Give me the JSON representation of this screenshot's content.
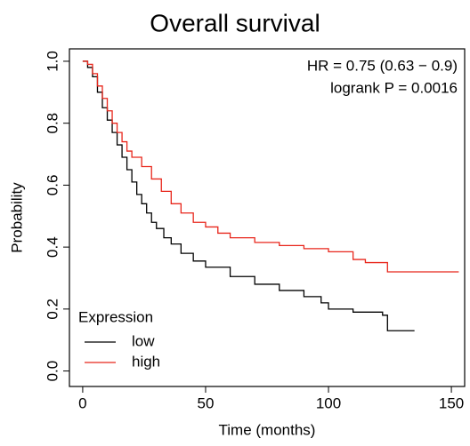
{
  "chart_data": {
    "type": "step",
    "title": "Overall survival",
    "x_label": "Time (months)",
    "y_label": "Probability",
    "annotations": [
      "HR = 0.75 (0.63 − 0.9)",
      "logrank P = 0.0016"
    ],
    "legend_title": "Expression",
    "legend": "bottom-left",
    "xlim": [
      -5.4,
      155.4
    ],
    "ylim": [
      -0.05,
      1.04
    ],
    "xticks": [
      0,
      50,
      100,
      150
    ],
    "yticks": [
      {
        "value": 0,
        "label": "0.0"
      },
      0.2,
      0.4,
      0.6,
      0.8,
      {
        "value": 1,
        "label": "1.0"
      }
    ],
    "series": [
      {
        "name": "low",
        "color": "#000000",
        "x": [
          0,
          2,
          4,
          6,
          8,
          10,
          12,
          14,
          16,
          18,
          20,
          22,
          24,
          26,
          28,
          30,
          33,
          36,
          40,
          45,
          50,
          60,
          70,
          80,
          90,
          97,
          100,
          110,
          122,
          124,
          135
        ],
        "values": [
          1.0,
          0.98,
          0.95,
          0.9,
          0.85,
          0.81,
          0.77,
          0.73,
          0.69,
          0.65,
          0.61,
          0.57,
          0.54,
          0.51,
          0.48,
          0.46,
          0.43,
          0.41,
          0.38,
          0.355,
          0.335,
          0.305,
          0.28,
          0.26,
          0.24,
          0.22,
          0.2,
          0.19,
          0.18,
          0.13,
          0.13
        ]
      },
      {
        "name": "high",
        "color": "#e8261b",
        "x": [
          0,
          2,
          4,
          6,
          8,
          10,
          12,
          14,
          16,
          18,
          20,
          24,
          28,
          32,
          36,
          40,
          45,
          50,
          55,
          60,
          70,
          80,
          90,
          100,
          110,
          115,
          124,
          153
        ],
        "values": [
          1.0,
          0.99,
          0.96,
          0.92,
          0.88,
          0.84,
          0.8,
          0.77,
          0.74,
          0.71,
          0.69,
          0.66,
          0.62,
          0.58,
          0.54,
          0.51,
          0.48,
          0.465,
          0.445,
          0.43,
          0.415,
          0.405,
          0.395,
          0.385,
          0.36,
          0.35,
          0.32,
          0.32
        ]
      }
    ]
  }
}
